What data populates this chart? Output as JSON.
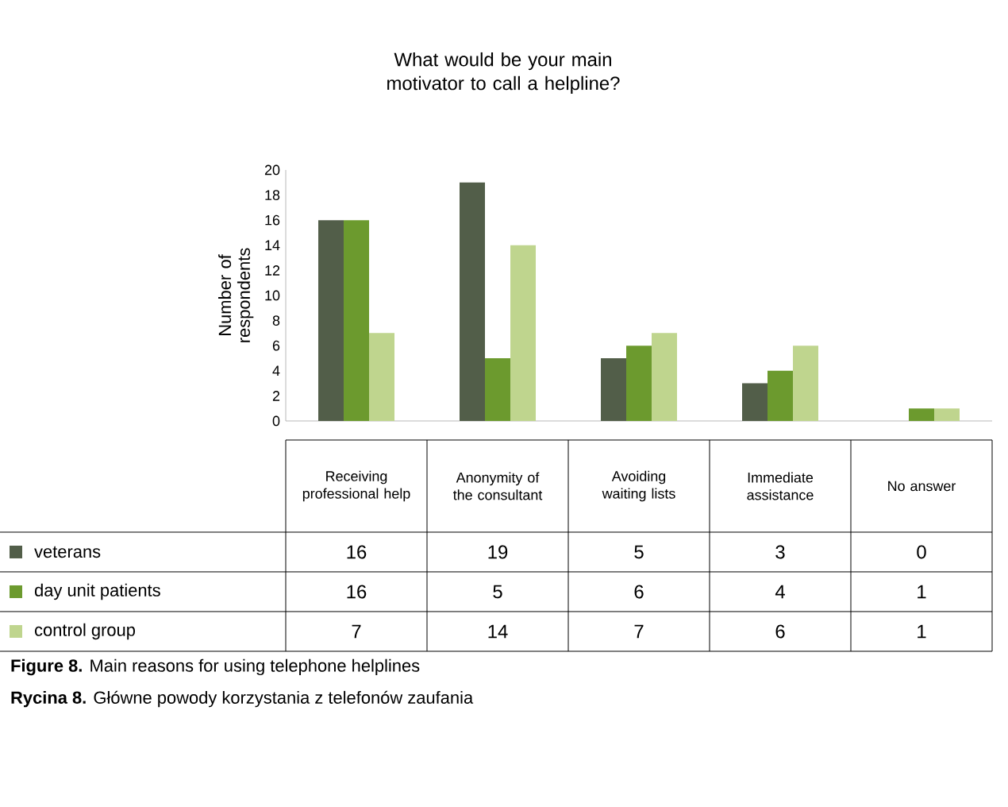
{
  "chart_data": {
    "type": "bar",
    "title": "What would be your main motivator to call a helpline?",
    "ylabel": "Number of respondents",
    "categories": [
      "Receiving professional help",
      "Anonymity of the consultant",
      "Avoiding waiting lists",
      "Immediate assistance",
      "No answer"
    ],
    "series": [
      {
        "name": "veterans",
        "color": "#525e49",
        "values": [
          16,
          19,
          5,
          3,
          0
        ]
      },
      {
        "name": "day unit patients",
        "color": "#6c9a2e",
        "values": [
          16,
          5,
          6,
          4,
          1
        ]
      },
      {
        "name": "control group",
        "color": "#bfd58e",
        "values": [
          7,
          14,
          7,
          6,
          1
        ]
      }
    ],
    "ylim": [
      0,
      20
    ],
    "yticks": [
      0,
      2,
      4,
      6,
      8,
      10,
      12,
      14,
      16,
      18,
      20
    ],
    "data_labels": true,
    "legend": "bottom",
    "annotations": [
      "**Figure 8.** Main reasons for using telephone helplines",
      "**Rycina 8.** Główne powody korzystania z telefonów zaufania"
    ]
  }
}
